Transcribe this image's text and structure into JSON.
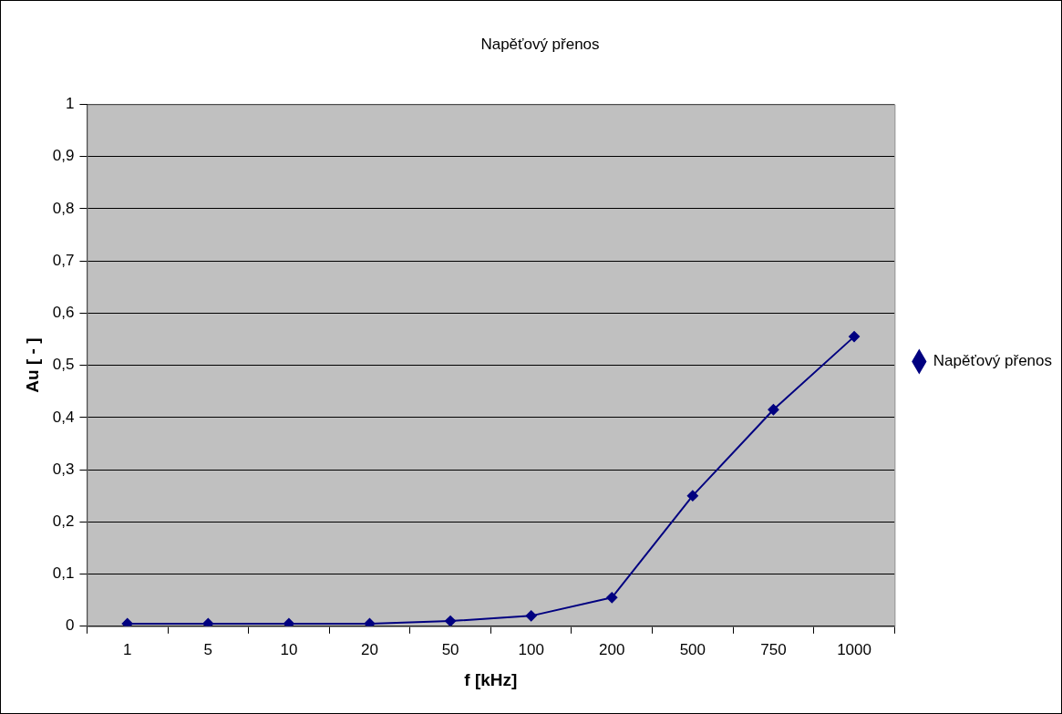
{
  "chart_data": {
    "type": "line",
    "title": "Napěťový přenos",
    "xlabel": "f [kHz]",
    "ylabel": "Au [ - ]",
    "categories": [
      "1",
      "5",
      "10",
      "20",
      "50",
      "100",
      "200",
      "500",
      "750",
      "1000"
    ],
    "series": [
      {
        "name": "Napěťový přenos",
        "color": "#000080",
        "values": [
          0.005,
          0.005,
          0.005,
          0.005,
          0.01,
          0.02,
          0.055,
          0.25,
          0.415,
          0.555
        ]
      }
    ],
    "ylim": [
      0,
      1
    ],
    "yticks": [
      0,
      {
        "value": 0.1,
        "label": "0,1"
      },
      {
        "value": 0.2,
        "label": "0,2"
      },
      {
        "value": 0.3,
        "label": "0,3"
      },
      {
        "value": 0.4,
        "label": "0,4"
      },
      {
        "value": 0.5,
        "label": "0,5"
      },
      {
        "value": 0.6,
        "label": "0,6"
      },
      {
        "value": 0.7,
        "label": "0,7"
      },
      {
        "value": 0.8,
        "label": "0,8"
      },
      {
        "value": 0.9,
        "label": "0,9"
      },
      1
    ],
    "grid": "y",
    "legend": "right",
    "marker": "diamond",
    "line_style": "solid"
  }
}
